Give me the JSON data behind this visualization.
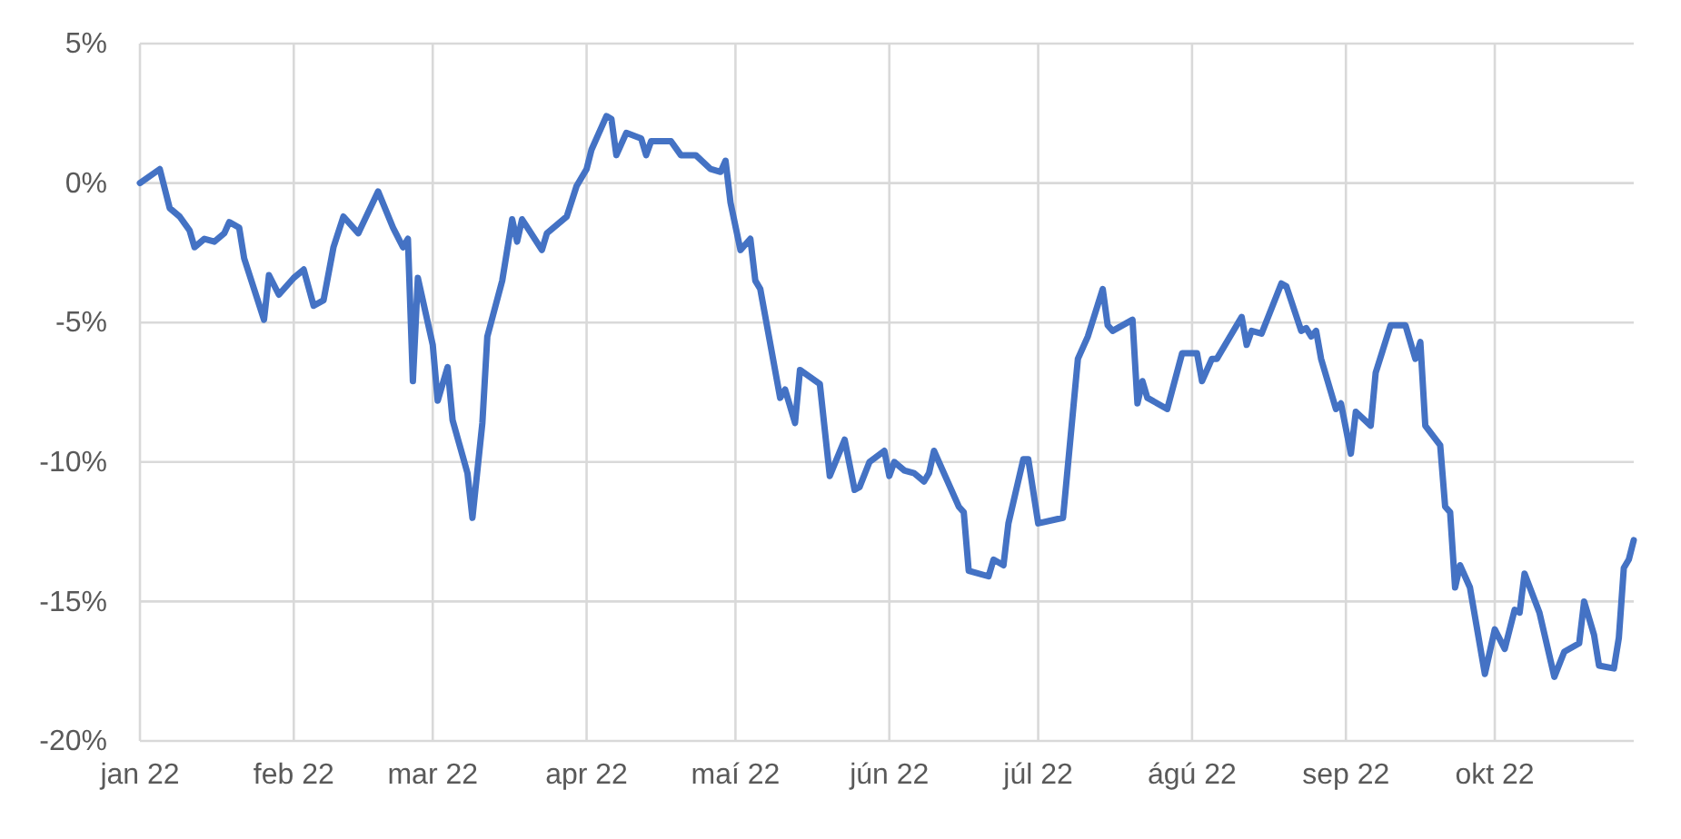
{
  "chart_data": {
    "type": "line",
    "x": [
      "2022-01-01",
      "2022-01-05",
      "2022-01-07",
      "2022-01-09",
      "2022-01-11",
      "2022-01-12",
      "2022-01-14",
      "2022-01-16",
      "2022-01-18",
      "2022-01-19",
      "2022-01-21",
      "2022-01-22",
      "2022-01-26",
      "2022-01-27",
      "2022-01-29",
      "2022-02-01",
      "2022-02-03",
      "2022-02-05",
      "2022-02-07",
      "2022-02-09",
      "2022-02-11",
      "2022-02-14",
      "2022-02-18",
      "2022-02-21",
      "2022-02-23",
      "2022-02-24",
      "2022-02-25",
      "2022-02-26",
      "2022-03-01",
      "2022-03-02",
      "2022-03-04",
      "2022-03-05",
      "2022-03-08",
      "2022-03-09",
      "2022-03-11",
      "2022-03-12",
      "2022-03-15",
      "2022-03-17",
      "2022-03-18",
      "2022-03-19",
      "2022-03-23",
      "2022-03-24",
      "2022-03-28",
      "2022-03-30",
      "2022-04-01",
      "2022-04-02",
      "2022-04-05",
      "2022-04-06",
      "2022-04-07",
      "2022-04-09",
      "2022-04-12",
      "2022-04-13",
      "2022-04-14",
      "2022-04-18",
      "2022-04-20",
      "2022-04-23",
      "2022-04-26",
      "2022-04-28",
      "2022-04-29",
      "2022-04-30",
      "2022-05-02",
      "2022-05-04",
      "2022-05-05",
      "2022-05-06",
      "2022-05-10",
      "2022-05-11",
      "2022-05-13",
      "2022-05-14",
      "2022-05-18",
      "2022-05-20",
      "2022-05-23",
      "2022-05-25",
      "2022-05-26",
      "2022-05-28",
      "2022-05-31",
      "2022-06-01",
      "2022-06-02",
      "2022-06-04",
      "2022-06-06",
      "2022-06-08",
      "2022-06-09",
      "2022-06-10",
      "2022-06-15",
      "2022-06-16",
      "2022-06-17",
      "2022-06-21",
      "2022-06-22",
      "2022-06-24",
      "2022-06-25",
      "2022-06-28",
      "2022-06-29",
      "2022-07-01",
      "2022-07-06",
      "2022-07-09",
      "2022-07-11",
      "2022-07-14",
      "2022-07-15",
      "2022-07-16",
      "2022-07-20",
      "2022-07-21",
      "2022-07-22",
      "2022-07-23",
      "2022-07-27",
      "2022-07-30",
      "2022-08-02",
      "2022-08-03",
      "2022-08-05",
      "2022-08-06",
      "2022-08-11",
      "2022-08-12",
      "2022-08-13",
      "2022-08-15",
      "2022-08-19",
      "2022-08-20",
      "2022-08-23",
      "2022-08-24",
      "2022-08-25",
      "2022-08-26",
      "2022-08-27",
      "2022-08-30",
      "2022-08-31",
      "2022-09-02",
      "2022-09-03",
      "2022-09-06",
      "2022-09-07",
      "2022-09-10",
      "2022-09-13",
      "2022-09-15",
      "2022-09-16",
      "2022-09-17",
      "2022-09-20",
      "2022-09-21",
      "2022-09-22",
      "2022-09-23",
      "2022-09-24",
      "2022-09-26",
      "2022-09-29",
      "2022-10-01",
      "2022-10-03",
      "2022-10-05",
      "2022-10-06",
      "2022-10-07",
      "2022-10-10",
      "2022-10-13",
      "2022-10-15",
      "2022-10-18",
      "2022-10-19",
      "2022-10-21",
      "2022-10-22",
      "2022-10-25",
      "2022-10-26",
      "2022-10-27",
      "2022-10-28",
      "2022-10-29"
    ],
    "series": [
      {
        "color": "#4472c4",
        "values": [
          0.0,
          0.5,
          -0.9,
          -1.2,
          -1.7,
          -2.3,
          -2.0,
          -2.1,
          -1.8,
          -1.4,
          -1.6,
          -2.7,
          -4.9,
          -3.3,
          -4.0,
          -3.4,
          -3.1,
          -4.4,
          -4.2,
          -2.3,
          -1.2,
          -1.8,
          -0.3,
          -1.6,
          -2.3,
          -2.0,
          -7.1,
          -3.4,
          -5.8,
          -7.8,
          -6.6,
          -8.5,
          -10.4,
          -12.0,
          -8.6,
          -5.5,
          -3.5,
          -1.3,
          -2.1,
          -1.3,
          -2.4,
          -1.8,
          -1.2,
          -0.1,
          0.5,
          1.2,
          2.4,
          2.3,
          1.0,
          1.8,
          1.6,
          1.0,
          1.5,
          1.5,
          1.0,
          1.0,
          0.5,
          0.4,
          0.8,
          -0.7,
          -2.4,
          -2.0,
          -3.5,
          -3.8,
          -7.7,
          -7.4,
          -8.6,
          -6.7,
          -7.2,
          -10.5,
          -9.2,
          -11.0,
          -10.9,
          -10.0,
          -9.6,
          -10.5,
          -10.0,
          -10.3,
          -10.4,
          -10.7,
          -10.4,
          -9.6,
          -11.6,
          -11.8,
          -13.9,
          -14.1,
          -13.5,
          -13.7,
          -12.2,
          -9.9,
          -9.9,
          -12.2,
          -12.0,
          -6.3,
          -5.5,
          -3.8,
          -5.1,
          -5.3,
          -4.9,
          -7.9,
          -7.1,
          -7.7,
          -8.1,
          -6.1,
          -6.1,
          -7.1,
          -6.3,
          -6.3,
          -4.8,
          -5.8,
          -5.3,
          -5.4,
          -3.6,
          -3.7,
          -5.3,
          -5.2,
          -5.5,
          -5.3,
          -6.3,
          -8.1,
          -7.9,
          -9.7,
          -8.2,
          -8.7,
          -6.8,
          -5.1,
          -5.1,
          -6.3,
          -5.7,
          -8.7,
          -9.4,
          -11.6,
          -11.8,
          -14.5,
          -13.7,
          -14.5,
          -17.6,
          -16.0,
          -16.7,
          -15.3,
          -15.4,
          -14.0,
          -15.4,
          -17.7,
          -16.8,
          -16.5,
          -15.0,
          -16.2,
          -17.3,
          -17.4,
          -16.3,
          -13.8,
          -13.5,
          -12.8
        ]
      }
    ],
    "xlim": [
      "2022-01-01",
      "2022-10-29"
    ],
    "xticks": [
      {
        "value": "2022-01-01",
        "label": "jan 22"
      },
      {
        "value": "2022-02-01",
        "label": "feb 22"
      },
      {
        "value": "2022-03-01",
        "label": "mar 22"
      },
      {
        "value": "2022-04-01",
        "label": "apr 22"
      },
      {
        "value": "2022-05-01",
        "label": "maí 22"
      },
      {
        "value": "2022-06-01",
        "label": "jún 22"
      },
      {
        "value": "2022-07-01",
        "label": "júl 22"
      },
      {
        "value": "2022-08-01",
        "label": "ágú 22"
      },
      {
        "value": "2022-09-01",
        "label": "sep 22"
      },
      {
        "value": "2022-10-01",
        "label": "okt 22"
      }
    ],
    "ylim": [
      -20,
      5
    ],
    "yticks": [
      {
        "value": -20,
        "label": "-20%"
      },
      {
        "value": -15,
        "label": "-15%"
      },
      {
        "value": -10,
        "label": "-10%"
      },
      {
        "value": -5,
        "label": "-5%"
      },
      {
        "value": 0,
        "label": "0%"
      },
      {
        "value": 5,
        "label": "5%"
      }
    ],
    "grid": true,
    "line_style": "solid",
    "marker": "none"
  }
}
